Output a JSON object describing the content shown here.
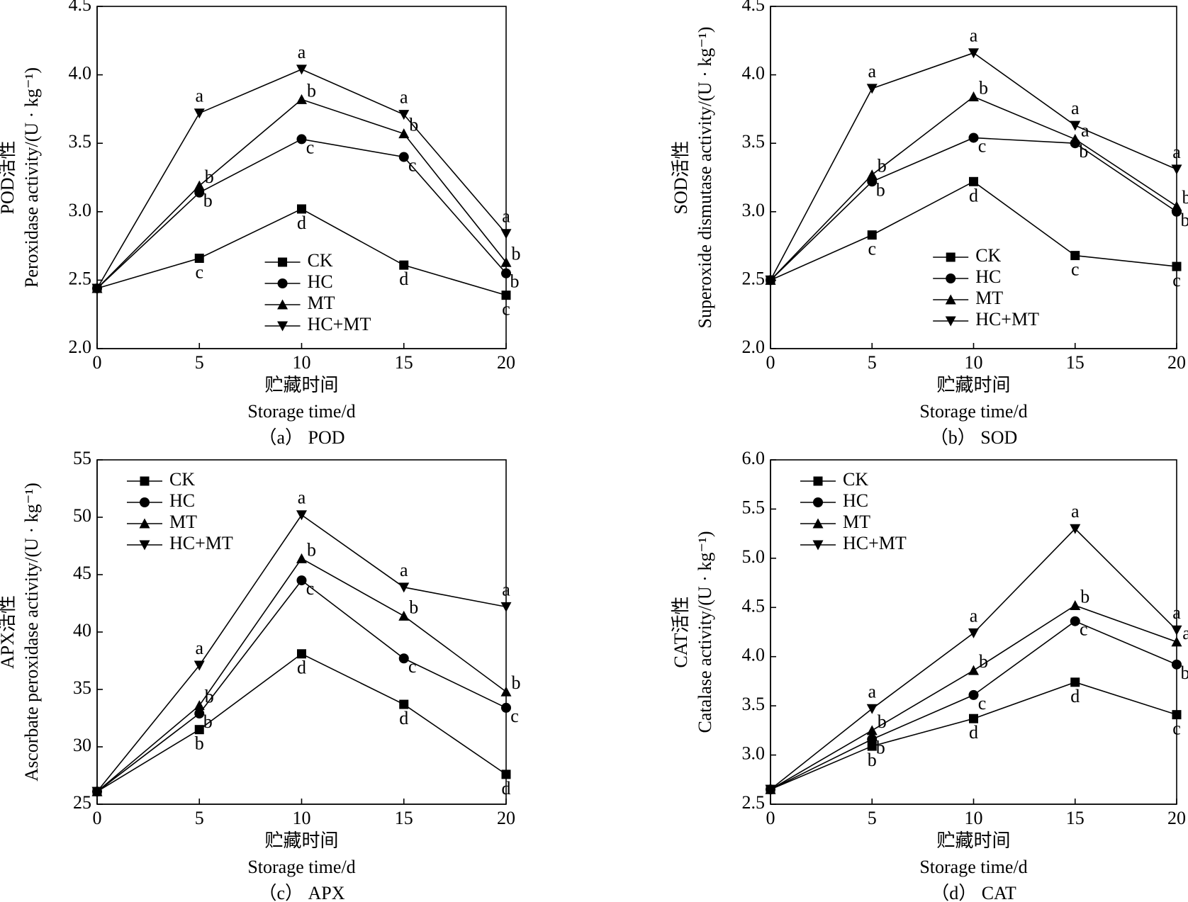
{
  "chart_data": [
    {
      "type": "line",
      "caption": "（a） POD",
      "ylabel": "POD活性",
      "ylabel2": "Peroxidase activity/(U · kg⁻¹)",
      "xlabel": "贮藏时间",
      "xlabel2": "Storage time/d",
      "x": [
        0,
        5,
        10,
        15,
        20
      ],
      "xlim": [
        0,
        20
      ],
      "xticks": [
        0,
        5,
        10,
        15,
        20
      ],
      "ylim": [
        2.0,
        4.5
      ],
      "yticks": [
        {
          "value": 2.0,
          "label": "2.0"
        },
        2.5,
        {
          "value": 3.0,
          "label": "3.0"
        },
        3.5,
        {
          "value": 4.0,
          "label": "4.0"
        },
        4.5
      ],
      "legend": "lower center",
      "series": [
        {
          "name": "CK",
          "color": "#000000",
          "marker": "square",
          "values": [
            2.44,
            2.66,
            3.02,
            2.61,
            2.39
          ],
          "letters": [
            null,
            "c",
            "d",
            "d",
            "c"
          ]
        },
        {
          "name": "HC",
          "color": "#000000",
          "marker": "circle",
          "values": [
            2.44,
            3.14,
            3.53,
            3.4,
            2.55
          ],
          "letters": [
            null,
            "b",
            "c",
            "c",
            "b"
          ]
        },
        {
          "name": "MT",
          "color": "#000000",
          "marker": "triangle-up",
          "values": [
            2.44,
            3.19,
            3.82,
            3.57,
            2.63
          ],
          "letters": [
            null,
            "b",
            "b",
            "b",
            "b"
          ]
        },
        {
          "name": "HC+MT",
          "color": "#000000",
          "marker": "triangle-down",
          "values": [
            2.44,
            3.72,
            4.04,
            3.71,
            2.84
          ],
          "letters": [
            null,
            "a",
            "a",
            "a",
            "a"
          ]
        }
      ]
    },
    {
      "type": "line",
      "caption": "（b） SOD",
      "ylabel": "SOD活性",
      "ylabel2": "Superoxide dismutase activity/(U · kg⁻¹)",
      "xlabel": "贮藏时间",
      "xlabel2": "Storage time/d",
      "x": [
        0,
        5,
        10,
        15,
        20
      ],
      "xlim": [
        0,
        20
      ],
      "xticks": [
        0,
        5,
        10,
        15,
        20
      ],
      "ylim": [
        2.0,
        4.5
      ],
      "yticks": [
        {
          "value": 2.0,
          "label": "2.0"
        },
        2.5,
        {
          "value": 3.0,
          "label": "3.0"
        },
        3.5,
        {
          "value": 4.0,
          "label": "4.0"
        },
        4.5
      ],
      "legend": "lower right",
      "series": [
        {
          "name": "CK",
          "color": "#000000",
          "marker": "square",
          "values": [
            2.5,
            2.83,
            3.22,
            2.68,
            2.6
          ],
          "letters": [
            null,
            "c",
            "d",
            "c",
            "c"
          ]
        },
        {
          "name": "HC",
          "color": "#000000",
          "marker": "circle",
          "values": [
            2.5,
            3.22,
            3.54,
            3.5,
            3.0
          ],
          "letters": [
            null,
            "b",
            "c",
            "b",
            "b"
          ]
        },
        {
          "name": "MT",
          "color": "#000000",
          "marker": "triangle-up",
          "values": [
            2.5,
            3.27,
            3.84,
            3.53,
            3.04
          ],
          "letters": [
            null,
            "b",
            "b",
            "a",
            "b"
          ]
        },
        {
          "name": "HC+MT",
          "color": "#000000",
          "marker": "triangle-down",
          "values": [
            2.5,
            3.9,
            4.16,
            3.63,
            3.31
          ],
          "letters": [
            null,
            "a",
            "a",
            "a",
            "a"
          ]
        }
      ]
    },
    {
      "type": "line",
      "caption": "（c） APX",
      "ylabel": "APX活性",
      "ylabel2": "Ascorbate peroxidase activity/(U · kg⁻¹)",
      "xlabel": "贮藏时间",
      "xlabel2": "Storage time/d",
      "x": [
        0,
        5,
        10,
        15,
        20
      ],
      "xlim": [
        0,
        20
      ],
      "xticks": [
        0,
        5,
        10,
        15,
        20
      ],
      "ylim": [
        25,
        55
      ],
      "yticks": [
        25,
        30,
        35,
        40,
        45,
        50,
        55
      ],
      "legend": "upper left",
      "series": [
        {
          "name": "CK",
          "color": "#000000",
          "marker": "square",
          "values": [
            26.1,
            31.5,
            38.1,
            33.7,
            27.6
          ],
          "letters": [
            null,
            "b",
            "d",
            "d",
            "d"
          ]
        },
        {
          "name": "HC",
          "color": "#000000",
          "marker": "circle",
          "values": [
            26.1,
            32.9,
            44.5,
            37.7,
            33.4
          ],
          "letters": [
            null,
            "b",
            "c",
            "c",
            "c"
          ]
        },
        {
          "name": "MT",
          "color": "#000000",
          "marker": "triangle-up",
          "values": [
            26.1,
            33.6,
            46.4,
            41.4,
            34.8
          ],
          "letters": [
            null,
            "b",
            "b",
            "b",
            "b"
          ]
        },
        {
          "name": "HC+MT",
          "color": "#000000",
          "marker": "triangle-down",
          "values": [
            26.1,
            37.1,
            50.2,
            43.9,
            42.2
          ],
          "letters": [
            null,
            "a",
            "a",
            "a",
            "a"
          ]
        }
      ]
    },
    {
      "type": "line",
      "caption": "（d） CAT",
      "ylabel": "CAT活性",
      "ylabel2": "Catalase activity/(U · kg⁻¹)",
      "xlabel": "贮藏时间",
      "xlabel2": "Storage time/d",
      "x": [
        0,
        5,
        10,
        15,
        20
      ],
      "xlim": [
        0,
        20
      ],
      "xticks": [
        0,
        5,
        10,
        15,
        20
      ],
      "ylim": [
        2.5,
        6.0
      ],
      "yticks": [
        2.5,
        {
          "value": 3.0,
          "label": "3.0"
        },
        3.5,
        {
          "value": 4.0,
          "label": "4.0"
        },
        4.5,
        {
          "value": 5.0,
          "label": "5.0"
        },
        5.5,
        {
          "value": 6.0,
          "label": "6.0"
        }
      ],
      "legend": "upper left",
      "series": [
        {
          "name": "CK",
          "color": "#000000",
          "marker": "square",
          "values": [
            2.65,
            3.09,
            3.37,
            3.74,
            3.41
          ],
          "letters": [
            null,
            "b",
            "d",
            "d",
            "c"
          ]
        },
        {
          "name": "HC",
          "color": "#000000",
          "marker": "circle",
          "values": [
            2.65,
            3.16,
            3.61,
            4.36,
            3.92
          ],
          "letters": [
            null,
            "b",
            "c",
            "c",
            "b"
          ]
        },
        {
          "name": "MT",
          "color": "#000000",
          "marker": "triangle-up",
          "values": [
            2.65,
            3.25,
            3.86,
            4.52,
            4.15
          ],
          "letters": [
            null,
            "b",
            "b",
            "b",
            "a"
          ]
        },
        {
          "name": "HC+MT",
          "color": "#000000",
          "marker": "triangle-down",
          "values": [
            2.65,
            3.47,
            4.24,
            5.3,
            4.27
          ],
          "letters": [
            null,
            "a",
            "a",
            "a",
            "a"
          ]
        }
      ]
    }
  ]
}
